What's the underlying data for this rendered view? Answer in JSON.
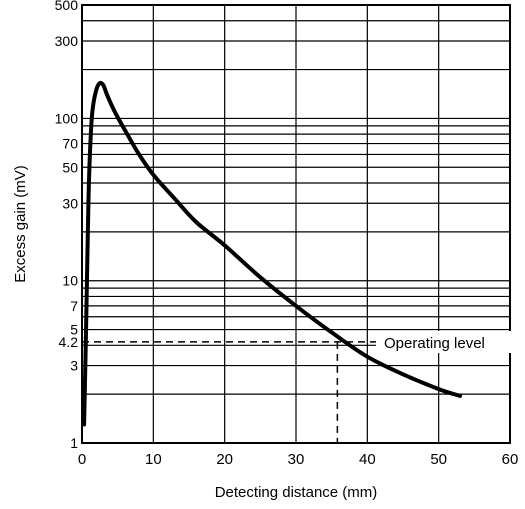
{
  "chart_data": {
    "type": "line",
    "title": "",
    "xlabel": "Detecting distance (mm)",
    "ylabel": "Excess gain (mV)",
    "xlim": [
      0,
      60
    ],
    "ylim": [
      1,
      500
    ],
    "y_scale": "log",
    "grid": true,
    "x_ticks": [
      0,
      10,
      20,
      30,
      40,
      50,
      60
    ],
    "x_tick_labels": [
      "0",
      "10",
      "20",
      "30",
      "40",
      "50",
      "60"
    ],
    "y_ticks": [
      1,
      3,
      4.2,
      5,
      7,
      10,
      30,
      50,
      70,
      100,
      300,
      500
    ],
    "y_tick_labels": [
      "1",
      "3",
      "4.2",
      "5",
      "7",
      "10",
      "30",
      "50",
      "70",
      "100",
      "300",
      "500"
    ],
    "y_grid_lines": [
      2,
      3,
      4,
      5,
      6,
      7,
      8,
      9,
      10,
      20,
      30,
      40,
      50,
      60,
      70,
      80,
      90,
      100,
      200,
      300,
      400,
      500
    ],
    "series": [
      {
        "x": [
          0.3,
          0.6,
          0.9,
          1.2,
          1.5,
          2.0,
          2.5,
          3.0,
          3.5,
          4.5,
          6,
          8,
          10,
          13,
          16,
          20,
          25,
          30,
          35,
          40,
          45,
          50,
          53
        ],
        "y": [
          1.3,
          6,
          30,
          75,
          115,
          150,
          165,
          160,
          140,
          112,
          85,
          60,
          45,
          32,
          23,
          16.5,
          10.5,
          7,
          4.8,
          3.4,
          2.65,
          2.15,
          1.95
        ]
      }
    ],
    "annotations": [
      {
        "text": "Operating level",
        "y": 4.2,
        "x_intersect": 35.8
      }
    ]
  }
}
